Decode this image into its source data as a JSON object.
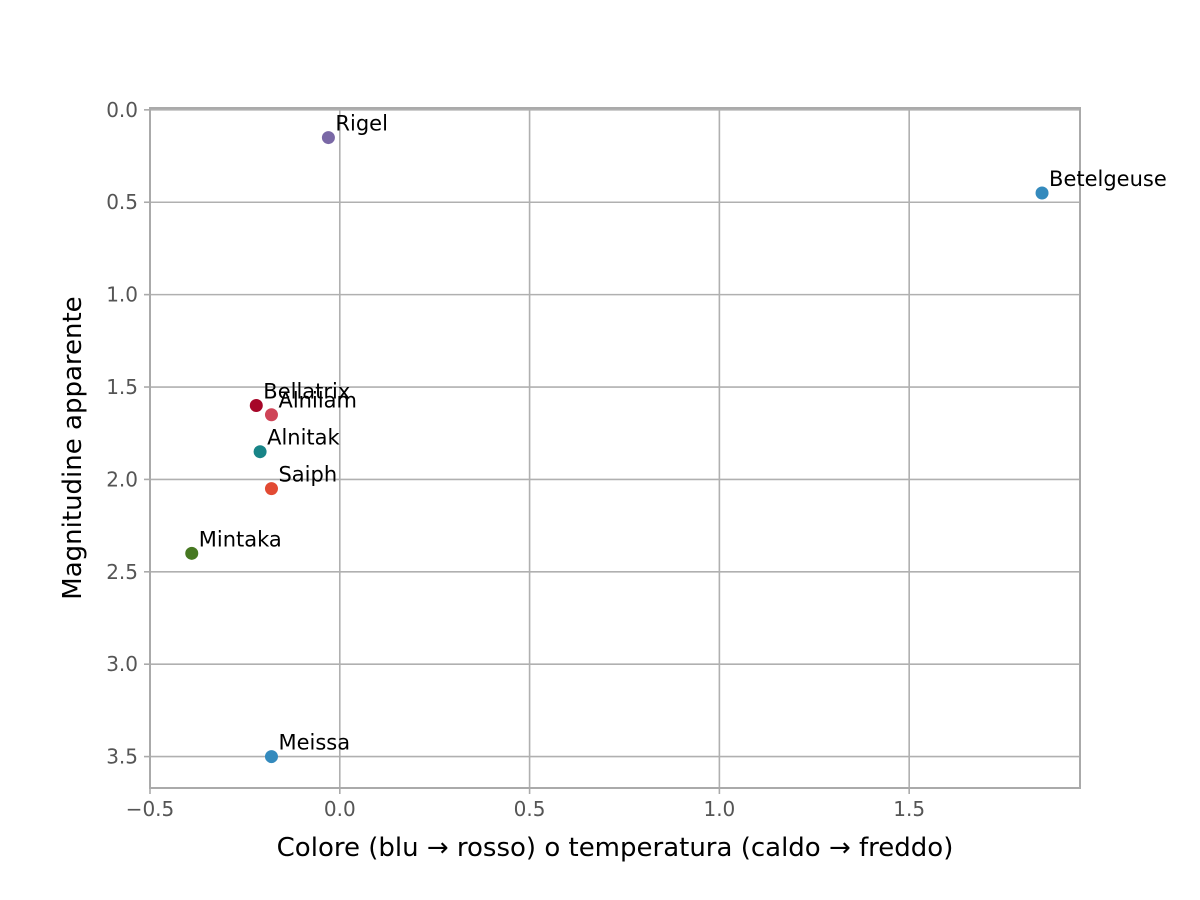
{
  "chart_data": {
    "type": "scatter",
    "title": "",
    "xlabel": "Colore (blu → rosso) o temperatura (caldo → freddo)",
    "ylabel": "Magnitudine apparente",
    "xlim": [
      -0.5,
      1.95
    ],
    "ylim": [
      3.67,
      -0.01
    ],
    "y_inverted": true,
    "grid": true,
    "legend": "none",
    "x_ticks": [
      -0.5,
      0.0,
      0.5,
      1.0,
      1.5
    ],
    "x_tick_labels": [
      "−0.5",
      "0.0",
      "0.5",
      "1.0",
      "1.5"
    ],
    "y_ticks": [
      0.0,
      0.5,
      1.0,
      1.5,
      2.0,
      2.5,
      3.0,
      3.5
    ],
    "y_tick_labels": [
      "0.0",
      "0.5",
      "1.0",
      "1.5",
      "2.0",
      "2.5",
      "3.0",
      "3.5"
    ],
    "points": [
      {
        "label": "Rigel",
        "x": -0.03,
        "y": 0.15,
        "color": "#7a68a6"
      },
      {
        "label": "Betelgeuse",
        "x": 1.85,
        "y": 0.45,
        "color": "#348abd"
      },
      {
        "label": "Bellatrix",
        "x": -0.22,
        "y": 1.6,
        "color": "#a60628"
      },
      {
        "label": "Alnilam",
        "x": -0.18,
        "y": 1.65,
        "color": "#cf4457"
      },
      {
        "label": "Alnitak",
        "x": -0.21,
        "y": 1.85,
        "color": "#188487"
      },
      {
        "label": "Saiph",
        "x": -0.18,
        "y": 2.05,
        "color": "#e24a33"
      },
      {
        "label": "Mintaka",
        "x": -0.39,
        "y": 2.4,
        "color": "#467821"
      },
      {
        "label": "Meissa",
        "x": -0.18,
        "y": 3.5,
        "color": "#348abd"
      }
    ]
  }
}
